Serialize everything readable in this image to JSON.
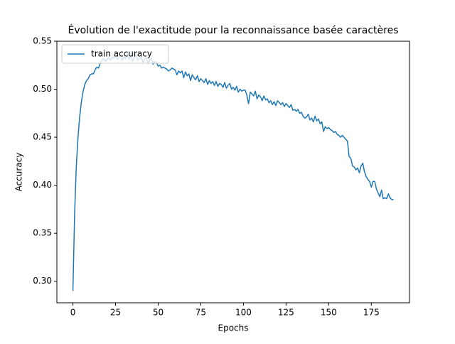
{
  "chart_data": {
    "type": "line",
    "title": "Évolution de l'exactitude pour la reconnaissance basée caractères",
    "x_label": "Epochs",
    "y_label": "Accuracy",
    "x": [
      0,
      1,
      2,
      3,
      4,
      5,
      6,
      7,
      8,
      9,
      10,
      11,
      12,
      13,
      14,
      15,
      16,
      17,
      18,
      19,
      20,
      21,
      22,
      23,
      24,
      25,
      26,
      27,
      28,
      29,
      30,
      31,
      32,
      33,
      34,
      35,
      36,
      37,
      38,
      39,
      40,
      41,
      42,
      43,
      44,
      45,
      46,
      47,
      48,
      49,
      50,
      51,
      52,
      53,
      54,
      55,
      56,
      57,
      58,
      59,
      60,
      61,
      62,
      63,
      64,
      65,
      66,
      67,
      68,
      69,
      70,
      71,
      72,
      73,
      74,
      75,
      76,
      77,
      78,
      79,
      80,
      81,
      82,
      83,
      84,
      85,
      86,
      87,
      88,
      89,
      90,
      91,
      92,
      93,
      94,
      95,
      96,
      97,
      98,
      99,
      100,
      101,
      102,
      103,
      104,
      105,
      106,
      107,
      108,
      109,
      110,
      111,
      112,
      113,
      114,
      115,
      116,
      117,
      118,
      119,
      120,
      121,
      122,
      123,
      124,
      125,
      126,
      127,
      128,
      129,
      130,
      131,
      132,
      133,
      134,
      135,
      136,
      137,
      138,
      139,
      140,
      141,
      142,
      143,
      144,
      145,
      146,
      147,
      148,
      149,
      150,
      151,
      152,
      153,
      154,
      155,
      156,
      157,
      158,
      159,
      160,
      161,
      162,
      163,
      164,
      165,
      166,
      167,
      168,
      169,
      170,
      171,
      172,
      173,
      174,
      175,
      176,
      177,
      178,
      179,
      180,
      181,
      182,
      183,
      184,
      185,
      186,
      187,
      188
    ],
    "series": [
      {
        "name": "train accuracy",
        "color": "#1f77b4",
        "values": [
          0.29,
          0.37,
          0.42,
          0.45,
          0.472,
          0.487,
          0.498,
          0.505,
          0.509,
          0.511,
          0.515,
          0.516,
          0.516,
          0.52,
          0.523,
          0.522,
          0.527,
          0.53,
          0.532,
          0.529,
          0.531,
          0.533,
          0.53,
          0.534,
          0.532,
          0.535,
          0.531,
          0.533,
          0.536,
          0.53,
          0.534,
          0.532,
          0.537,
          0.531,
          0.535,
          0.529,
          0.533,
          0.536,
          0.53,
          0.532,
          0.534,
          0.528,
          0.531,
          0.533,
          0.527,
          0.53,
          0.532,
          0.526,
          0.529,
          0.528,
          0.524,
          0.525,
          0.522,
          0.523,
          0.522,
          0.521,
          0.519,
          0.52,
          0.522,
          0.521,
          0.52,
          0.515,
          0.519,
          0.517,
          0.519,
          0.512,
          0.518,
          0.514,
          0.516,
          0.509,
          0.515,
          0.512,
          0.51,
          0.514,
          0.508,
          0.511,
          0.509,
          0.507,
          0.511,
          0.505,
          0.509,
          0.506,
          0.508,
          0.504,
          0.508,
          0.503,
          0.506,
          0.505,
          0.502,
          0.507,
          0.501,
          0.504,
          0.506,
          0.5,
          0.502,
          0.499,
          0.503,
          0.497,
          0.5,
          0.498,
          0.499,
          0.499,
          0.494,
          0.485,
          0.497,
          0.495,
          0.493,
          0.498,
          0.49,
          0.494,
          0.492,
          0.488,
          0.493,
          0.489,
          0.49,
          0.486,
          0.488,
          0.484,
          0.487,
          0.483,
          0.488,
          0.486,
          0.484,
          0.486,
          0.482,
          0.485,
          0.483,
          0.481,
          0.484,
          0.478,
          0.479,
          0.477,
          0.479,
          0.475,
          0.476,
          0.472,
          0.47,
          0.471,
          0.474,
          0.468,
          0.47,
          0.466,
          0.472,
          0.467,
          0.469,
          0.464,
          0.466,
          0.456,
          0.461,
          0.459,
          0.46,
          0.458,
          0.457,
          0.455,
          0.456,
          0.453,
          0.452,
          0.45,
          0.452,
          0.45,
          0.448,
          0.446,
          0.43,
          0.428,
          0.42,
          0.419,
          0.416,
          0.418,
          0.413,
          0.42,
          0.423,
          0.414,
          0.409,
          0.406,
          0.404,
          0.398,
          0.404,
          0.404,
          0.396,
          0.392,
          0.388,
          0.395,
          0.386,
          0.387,
          0.386,
          0.391,
          0.387,
          0.385,
          0.385
        ]
      }
    ],
    "xlim": [
      -9.4,
      197.4
    ],
    "xticks": [
      0,
      25,
      50,
      75,
      100,
      125,
      150,
      175
    ],
    "ylim": [
      0.2776,
      0.55
    ],
    "yticks": [
      {
        "value": 0.3,
        "label": "0.30"
      },
      0.35,
      {
        "value": 0.4,
        "label": "0.40"
      },
      0.45,
      {
        "value": 0.5,
        "label": "0.50"
      },
      0.55
    ],
    "legend": "upper left",
    "grid": false
  }
}
